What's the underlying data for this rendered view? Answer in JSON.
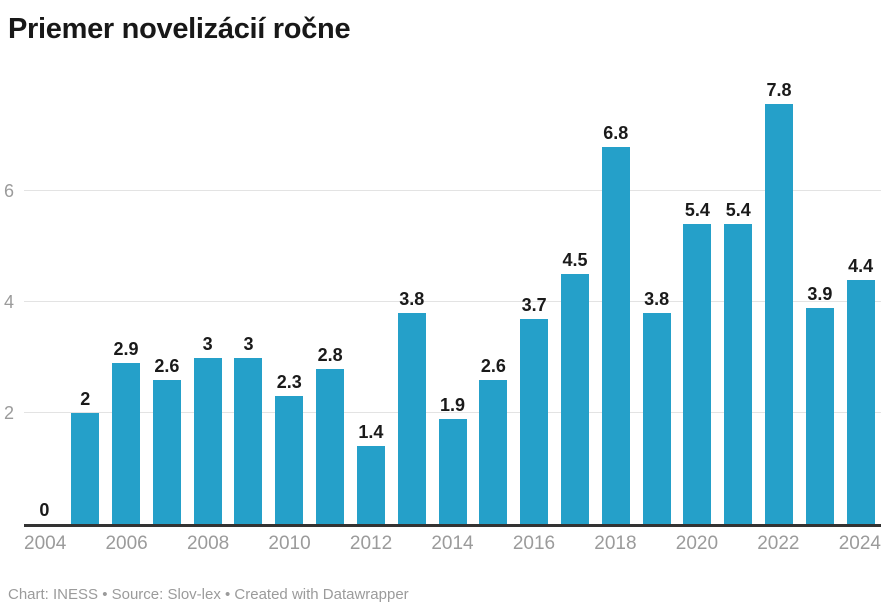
{
  "header": {
    "title": "Priemer novelizácií ročne"
  },
  "footer": {
    "text": "Chart: INESS • Source: Slov-lex • Created with Datawrapper"
  },
  "chart_data": {
    "type": "bar",
    "title": "Priemer novelizácií ročne",
    "categories": [
      "2004",
      "2005",
      "2006",
      "2007",
      "2008",
      "2009",
      "2010",
      "2011",
      "2012",
      "2013",
      "2014",
      "2015",
      "2016",
      "2017",
      "2018",
      "2019",
      "2020",
      "2021",
      "2022",
      "2023",
      "2024"
    ],
    "values": [
      0,
      2,
      2.9,
      2.6,
      3,
      3,
      2.3,
      2.8,
      1.4,
      3.8,
      1.9,
      2.6,
      3.7,
      4.5,
      6.8,
      3.8,
      5.4,
      5.4,
      7.8,
      3.9,
      4.4
    ],
    "value_labels": [
      "0",
      "2",
      "2.9",
      "2.6",
      "3",
      "3",
      "2.3",
      "2.8",
      "1.4",
      "3.8",
      "1.9",
      "2.6",
      "3.7",
      "4.5",
      "6.8",
      "3.8",
      "5.4",
      "5.4",
      "7.8",
      "3.9",
      "4.4"
    ],
    "xlabel": "",
    "ylabel": "",
    "ylim": [
      0,
      8
    ],
    "yticks": [
      2,
      4,
      6
    ],
    "xtick_labels": [
      "2004",
      "2006",
      "2008",
      "2010",
      "2012",
      "2014",
      "2016",
      "2018",
      "2020",
      "2022",
      "2024"
    ],
    "grid": true,
    "legend": "none",
    "colors": {
      "bar": "#25a0c9",
      "value_label": "#1a1a1a",
      "axis_text": "#9b9b9b",
      "gridline": "#e3e3e3",
      "baseline": "#333333",
      "title": "#181818"
    }
  }
}
